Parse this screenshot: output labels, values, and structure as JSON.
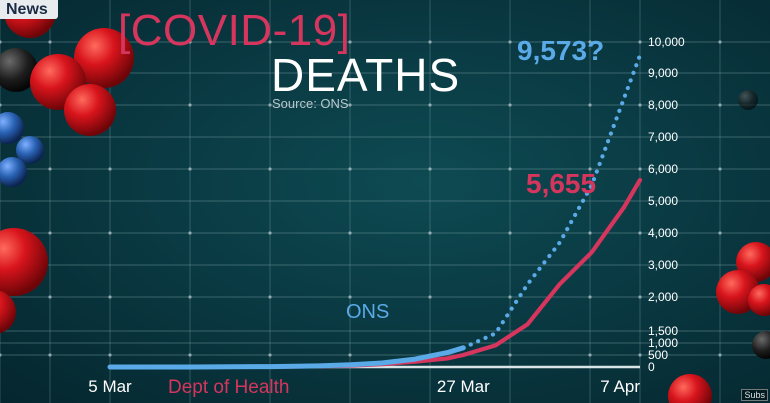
{
  "badge": {
    "label": "News"
  },
  "header": {
    "title_line1": "[COVID-19]",
    "title_line2": "DEATHS",
    "source": "Source: ONS"
  },
  "footer": {
    "subs_label": "Subs"
  },
  "colors": {
    "background": "#0a3a43",
    "grid": "#7fa3a8",
    "ons": "#5aaae8",
    "dept_of_health": "#d6365d",
    "title_red": "#d6365d",
    "title_white": "#ffffff",
    "molecule_red": "#d8141c",
    "molecule_blue": "#2a63b5"
  },
  "chart_data": {
    "type": "line",
    "x_tick_labels": [
      "5 Mar",
      "27 Mar",
      "7 Apr"
    ],
    "x_ticks_dates": [
      "2020-03-05",
      "2020-03-27",
      "2020-04-07"
    ],
    "xlim": [
      "2020-03-05",
      "2020-04-07"
    ],
    "y_tick_labels": [
      "0",
      "500",
      "1,000",
      "1,500",
      "2,000",
      "3,000",
      "4,000",
      "5,000",
      "6,000",
      "7,000",
      "8,000",
      "9,000",
      "10,000"
    ],
    "y_tick_values": [
      0,
      500,
      1000,
      1500,
      2000,
      3000,
      4000,
      5000,
      6000,
      7000,
      8000,
      9000,
      10000
    ],
    "ylim": [
      0,
      10000
    ],
    "grid": true,
    "series": [
      {
        "name": "ONS",
        "color": "#5aaae8",
        "end_label": "9,573?",
        "actual_points": [
          [
            "2020-03-05",
            0
          ],
          [
            "2020-03-10",
            2
          ],
          [
            "2020-03-15",
            15
          ],
          [
            "2020-03-18",
            45
          ],
          [
            "2020-03-20",
            90
          ],
          [
            "2020-03-22",
            170
          ],
          [
            "2020-03-24",
            330
          ],
          [
            "2020-03-26",
            600
          ],
          [
            "2020-03-27",
            800
          ]
        ],
        "projected_points": [
          [
            "2020-03-27",
            800
          ],
          [
            "2020-03-29",
            1400
          ],
          [
            "2020-03-31",
            2400
          ],
          [
            "2020-04-02",
            3700
          ],
          [
            "2020-04-04",
            5500
          ],
          [
            "2020-04-06",
            8200
          ],
          [
            "2020-04-07",
            9573
          ]
        ]
      },
      {
        "name": "Dept of Health",
        "color": "#d6365d",
        "end_label": "5,655",
        "points": [
          [
            "2020-03-05",
            0
          ],
          [
            "2020-03-10",
            1
          ],
          [
            "2020-03-15",
            12
          ],
          [
            "2020-03-18",
            30
          ],
          [
            "2020-03-20",
            55
          ],
          [
            "2020-03-22",
            120
          ],
          [
            "2020-03-24",
            220
          ],
          [
            "2020-03-26",
            360
          ],
          [
            "2020-03-27",
            500
          ],
          [
            "2020-03-29",
            900
          ],
          [
            "2020-03-31",
            1600
          ],
          [
            "2020-04-02",
            2400
          ],
          [
            "2020-04-04",
            3400
          ],
          [
            "2020-04-06",
            4800
          ],
          [
            "2020-04-07",
            5655
          ]
        ]
      }
    ]
  }
}
